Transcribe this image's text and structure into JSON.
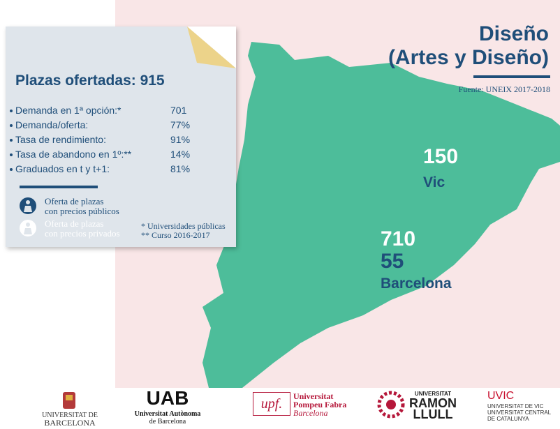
{
  "title": {
    "line1": "Diseño",
    "line2": "(Artes y Diseño)"
  },
  "source": "Fuente: UNEIX 2017-2018",
  "panel": {
    "heading": "Plazas ofertadas: 915",
    "stats": [
      {
        "label": "Demanda en 1ª opción:*",
        "value": "701"
      },
      {
        "label": "Demanda/oferta:",
        "value": "77%"
      },
      {
        "label": "Tasa de rendimiento:",
        "value": "91%"
      },
      {
        "label": "Tasa de abandono en 1º:**",
        "value": "14%"
      },
      {
        "label": "Graduados en t y t+1:",
        "value": "81%"
      }
    ],
    "legend": [
      {
        "line1": "Oferta de plazas",
        "line2": "con precios públicos"
      },
      {
        "line1": "Oferta de plazas",
        "line2": "con precios privados"
      }
    ],
    "notes": [
      "* Universidades públicas",
      "** Curso 2016-2017"
    ]
  },
  "cities": [
    {
      "values": [
        "150"
      ],
      "name": "Vic"
    },
    {
      "values": [
        "710",
        "55"
      ],
      "name": "Barcelona"
    }
  ],
  "logos": [
    {
      "line1": "UNIVERSITAT DE",
      "line2": "BARCELONA"
    },
    {
      "mark": "UAB",
      "line1": "Universitat Autònoma",
      "line2": "de Barcelona"
    },
    {
      "mark": "upf.",
      "line1": "Universitat",
      "line2": "Pompeu Fabra",
      "line3": "Barcelona"
    },
    {
      "line1": "UNIVERSITAT",
      "line2": "RAMON",
      "line3": "LLULL"
    },
    {
      "mark": "UVIC",
      "line1": "UNIVERSITAT DE VIC",
      "line2": "UNIVERSITAT CENTRAL",
      "line3": "DE CATALUNYA"
    }
  ]
}
